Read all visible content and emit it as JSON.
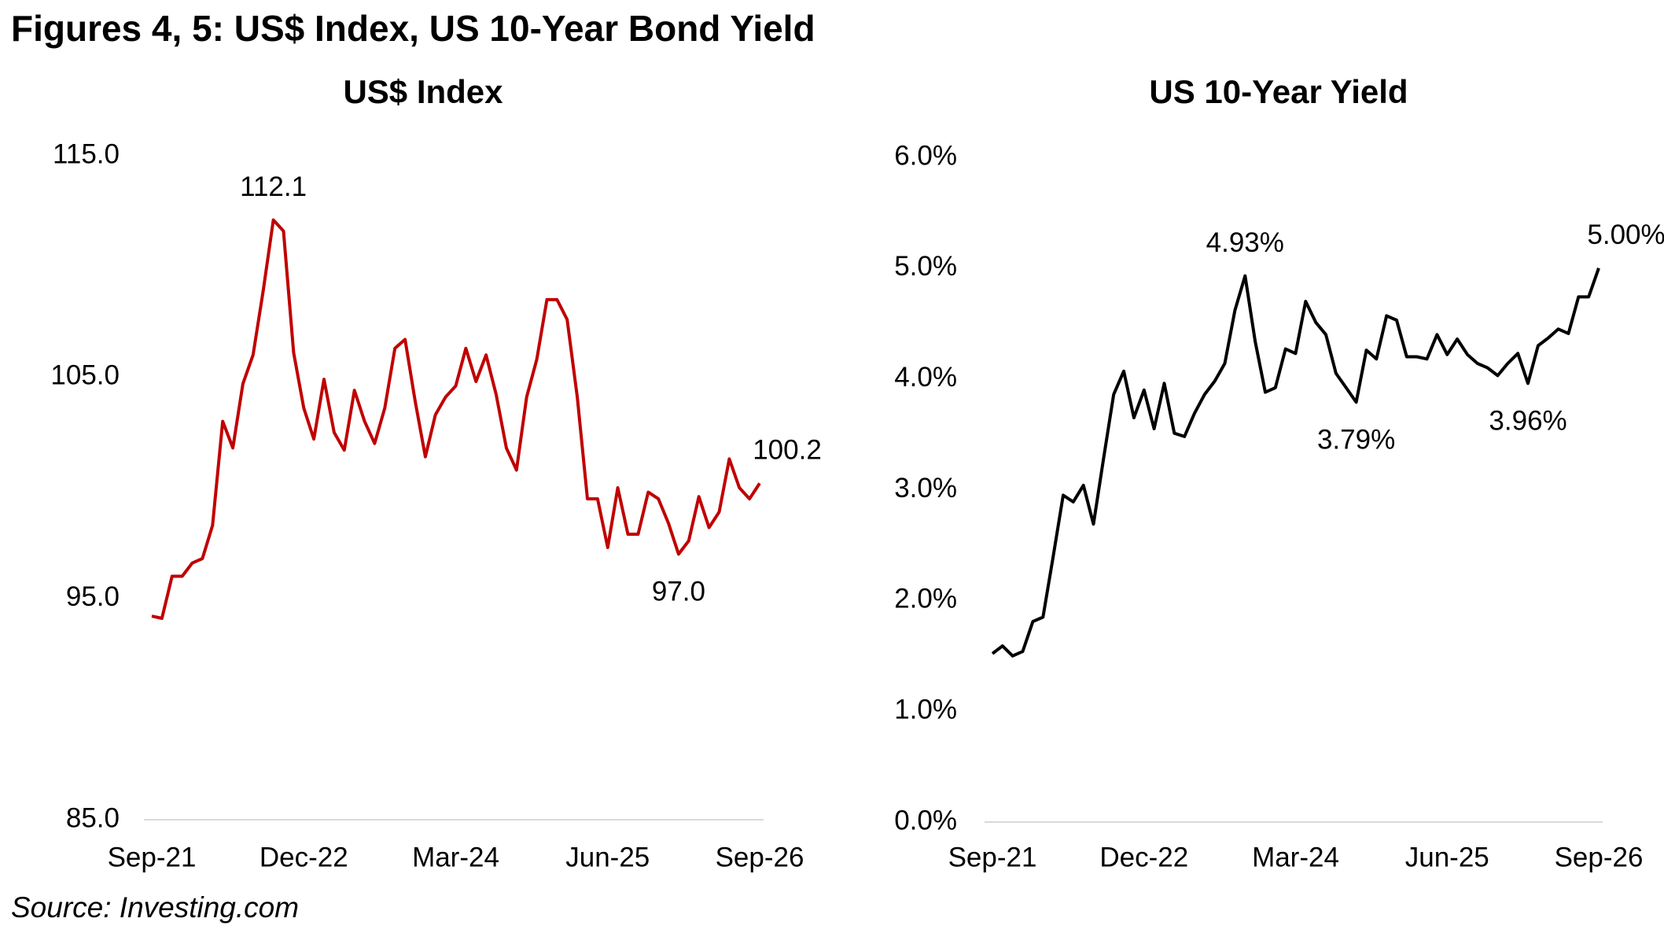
{
  "title": "Figures 4, 5: US$ Index, US 10-Year Bond Yield",
  "source": "Source: Investing.com",
  "chart_data": [
    {
      "type": "line",
      "title": "US$ Index",
      "color": "#c00000",
      "categories": [
        "Sep-21",
        null,
        null,
        null,
        null,
        null,
        null,
        null,
        null,
        null,
        null,
        null,
        null,
        null,
        null,
        "Dec-22",
        null,
        null,
        null,
        null,
        null,
        null,
        null,
        null,
        null,
        null,
        null,
        null,
        null,
        null,
        "Mar-24",
        null,
        null,
        null,
        null,
        null,
        null,
        null,
        null,
        null,
        null,
        null,
        null,
        null,
        null,
        "Jun-25",
        null,
        null,
        null,
        null,
        null,
        null,
        null,
        null,
        null,
        null,
        null,
        null,
        null,
        null,
        "Sep-26"
      ],
      "values": [
        94.2,
        94.1,
        96.0,
        96.0,
        96.6,
        96.8,
        98.3,
        103.0,
        101.8,
        104.7,
        106.0,
        108.9,
        112.1,
        111.6,
        106.1,
        103.6,
        102.2,
        104.9,
        102.5,
        101.7,
        104.4,
        103.0,
        102.0,
        103.6,
        106.3,
        106.7,
        103.9,
        101.4,
        103.3,
        104.1,
        104.6,
        106.3,
        104.8,
        106.0,
        104.2,
        101.8,
        100.8,
        104.1,
        105.8,
        108.5,
        108.5,
        107.6,
        104.1,
        99.5,
        99.5,
        97.3,
        100.0,
        97.9,
        97.9,
        99.8,
        99.5,
        98.4,
        97.0,
        97.6,
        99.6,
        98.2,
        98.9,
        101.3,
        100.0,
        99.5,
        100.2
      ],
      "value_labels": [
        null,
        null,
        null,
        null,
        null,
        null,
        null,
        null,
        null,
        null,
        null,
        null,
        "112.1",
        null,
        null,
        null,
        null,
        null,
        null,
        null,
        null,
        null,
        null,
        null,
        null,
        null,
        null,
        null,
        null,
        null,
        null,
        null,
        null,
        null,
        null,
        null,
        null,
        null,
        null,
        null,
        null,
        null,
        null,
        null,
        null,
        null,
        null,
        null,
        null,
        null,
        null,
        null,
        "97.0",
        null,
        null,
        null,
        null,
        null,
        null,
        null,
        "100.2"
      ],
      "ylim": [
        85,
        115
      ],
      "yticks": [
        {
          "value": 85,
          "label": "85.0"
        },
        {
          "value": 95,
          "label": "95.0"
        },
        {
          "value": 105,
          "label": "105.0"
        },
        {
          "value": 115,
          "label": "115.0"
        }
      ]
    },
    {
      "type": "line",
      "title": "US 10-Year Yield",
      "color": "#000000",
      "categories": [
        "Sep-21",
        null,
        null,
        null,
        null,
        null,
        null,
        null,
        null,
        null,
        null,
        null,
        null,
        null,
        null,
        "Dec-22",
        null,
        null,
        null,
        null,
        null,
        null,
        null,
        null,
        null,
        null,
        null,
        null,
        null,
        null,
        "Mar-24",
        null,
        null,
        null,
        null,
        null,
        null,
        null,
        null,
        null,
        null,
        null,
        null,
        null,
        null,
        "Jun-25",
        null,
        null,
        null,
        null,
        null,
        null,
        null,
        null,
        null,
        null,
        null,
        null,
        null,
        null,
        "Sep-26"
      ],
      "values": [
        1.52,
        1.59,
        1.5,
        1.54,
        1.81,
        1.85,
        2.39,
        2.95,
        2.89,
        3.04,
        2.69,
        3.28,
        3.86,
        4.07,
        3.65,
        3.9,
        3.55,
        3.96,
        3.51,
        3.48,
        3.69,
        3.86,
        3.98,
        4.14,
        4.62,
        4.93,
        4.34,
        3.88,
        3.92,
        4.27,
        4.23,
        4.7,
        4.51,
        4.4,
        4.05,
        3.92,
        3.79,
        4.26,
        4.18,
        4.57,
        4.53,
        4.2,
        4.2,
        4.18,
        4.4,
        4.22,
        4.36,
        4.22,
        4.14,
        4.1,
        4.03,
        4.14,
        4.23,
        3.96,
        4.3,
        4.37,
        4.45,
        4.41,
        4.74,
        4.74,
        5.0
      ],
      "value_labels": [
        null,
        null,
        null,
        null,
        null,
        null,
        null,
        null,
        null,
        null,
        null,
        null,
        null,
        null,
        null,
        null,
        null,
        null,
        null,
        null,
        null,
        null,
        null,
        null,
        null,
        "4.93%",
        null,
        null,
        null,
        null,
        null,
        null,
        null,
        null,
        null,
        null,
        "3.79%",
        null,
        null,
        null,
        null,
        null,
        null,
        null,
        null,
        null,
        null,
        null,
        null,
        null,
        null,
        null,
        null,
        "3.96%",
        null,
        null,
        null,
        null,
        null,
        null,
        "5.00%"
      ],
      "ylim": [
        0,
        6
      ],
      "yticks": [
        {
          "value": 0,
          "label": "0.0%"
        },
        {
          "value": 1,
          "label": "1.0%"
        },
        {
          "value": 2,
          "label": "2.0%"
        },
        {
          "value": 3,
          "label": "3.0%"
        },
        {
          "value": 4,
          "label": "4.0%"
        },
        {
          "value": 5,
          "label": "5.0%"
        },
        {
          "value": 6,
          "label": "6.0%"
        }
      ]
    }
  ]
}
